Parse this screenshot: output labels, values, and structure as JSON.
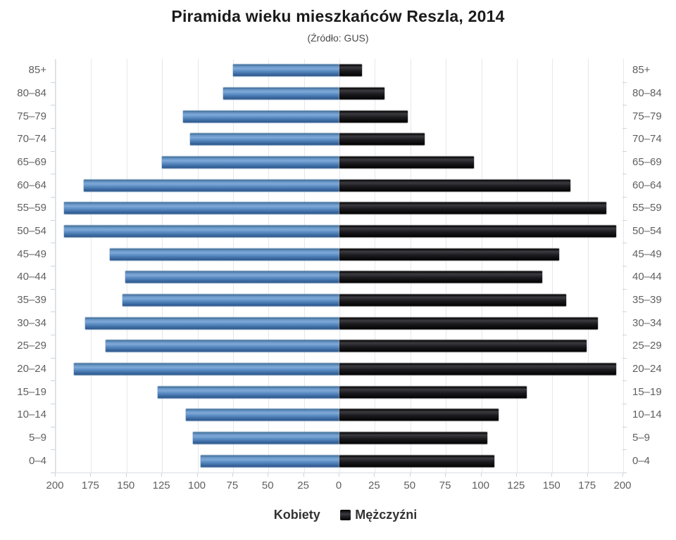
{
  "chart_data": {
    "type": "bar",
    "variant": "population-pyramid",
    "title": "Piramida wieku mieszkańców Reszla, 2014",
    "subtitle": "(Źródło: GUS)",
    "categories": [
      "85+",
      "80–84",
      "75–79",
      "70–74",
      "65–69",
      "60–64",
      "55–59",
      "50–54",
      "45–49",
      "40–44",
      "35–39",
      "30–34",
      "25–29",
      "20–24",
      "15–19",
      "10–14",
      "5–9",
      "0–4"
    ],
    "series": [
      {
        "name": "Kobiety",
        "side": "left",
        "color": "#4d84bd",
        "values": [
          75,
          82,
          110,
          105,
          125,
          180,
          194,
          194,
          162,
          151,
          153,
          179,
          165,
          187,
          128,
          108,
          103,
          98
        ]
      },
      {
        "name": "Mężczyźni",
        "side": "right",
        "color": "#1b1b1f",
        "values": [
          16,
          32,
          48,
          60,
          95,
          163,
          188,
          195,
          155,
          143,
          160,
          182,
          174,
          195,
          132,
          112,
          104,
          109
        ]
      }
    ],
    "x_ticks": [
      200,
      175,
      150,
      125,
      100,
      75,
      50,
      25,
      0,
      25,
      50,
      75,
      100,
      125,
      150,
      175,
      200
    ],
    "xlim": [
      0,
      200
    ],
    "grid": true,
    "legend_position": "bottom",
    "colors": {
      "women_accent": "#4d84bd",
      "men_accent": "#1b1b1f",
      "axis_label": "#606060",
      "gridline": "#e4e8ec",
      "title_text": "#1a1a1a"
    }
  }
}
